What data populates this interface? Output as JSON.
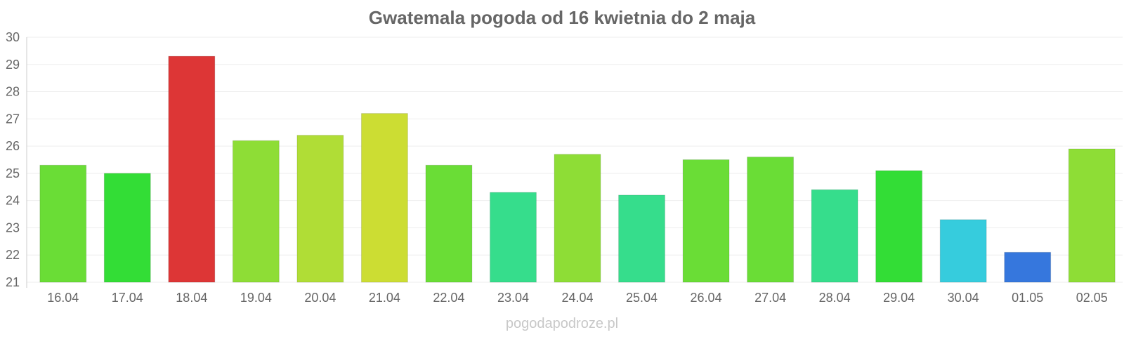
{
  "chart_data": {
    "type": "bar",
    "title": "Gwatemala pogoda od 16 kwietnia do 2 maja",
    "xlabel": "",
    "ylabel": "",
    "ylim": [
      21,
      30
    ],
    "yticks": [
      21,
      22,
      23,
      24,
      25,
      26,
      27,
      28,
      29,
      30
    ],
    "grid": true,
    "legend": "none",
    "categories": [
      "16.04",
      "17.04",
      "18.04",
      "19.04",
      "20.04",
      "21.04",
      "22.04",
      "23.04",
      "24.04",
      "25.04",
      "26.04",
      "27.04",
      "28.04",
      "29.04",
      "30.04",
      "01.05",
      "02.05"
    ],
    "values": [
      25.3,
      25.0,
      29.3,
      26.2,
      26.4,
      27.2,
      25.3,
      24.3,
      25.7,
      24.2,
      25.5,
      25.6,
      24.4,
      25.1,
      23.3,
      22.1,
      25.9
    ],
    "colors": [
      "#6add36",
      "#33dd36",
      "#dd3636",
      "#8edd36",
      "#b0dd36",
      "#ccdd33",
      "#6add36",
      "#36dd8c",
      "#8edd36",
      "#36dd8c",
      "#6add36",
      "#6add36",
      "#36dd8c",
      "#33dd36",
      "#36ccdd",
      "#3677dd",
      "#8edd36"
    ]
  },
  "watermark": "pogodapodroze.pl"
}
